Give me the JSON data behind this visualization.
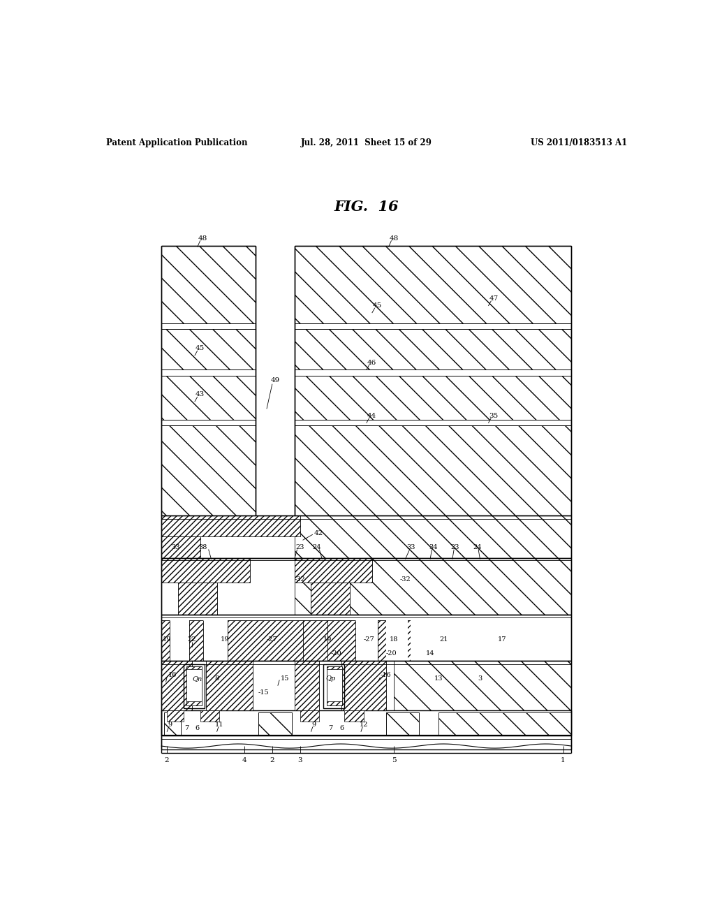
{
  "title": "FIG.  16",
  "header_left": "Patent Application Publication",
  "header_center": "Jul. 28, 2011  Sheet 15 of 29",
  "header_right": "US 2011/0183513 A1",
  "bg_color": "#ffffff",
  "fig_width": 10.24,
  "fig_height": 13.2
}
